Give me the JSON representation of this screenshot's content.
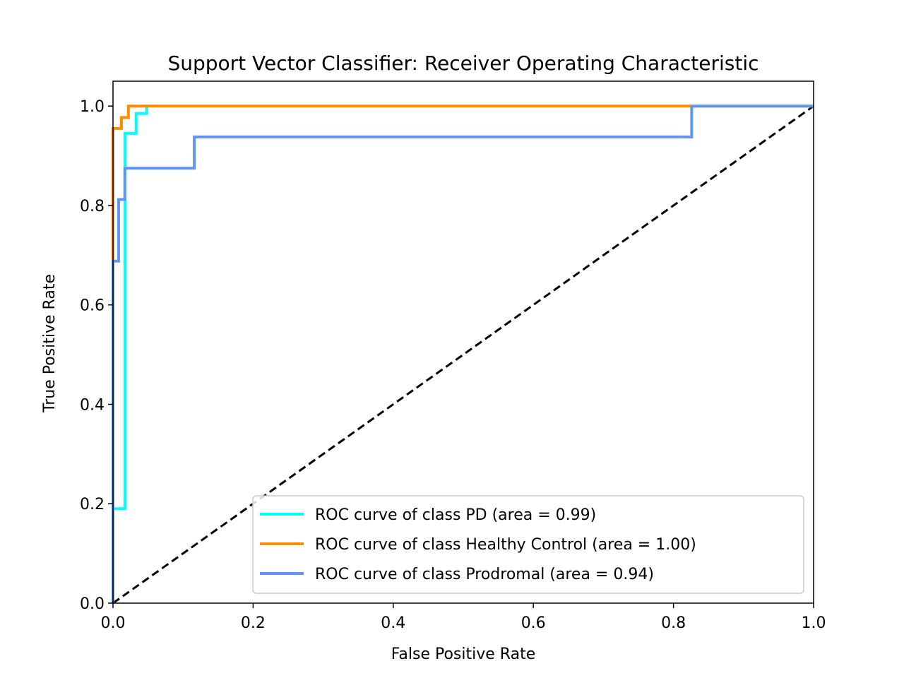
{
  "chart_data": {
    "type": "line",
    "title": "Support Vector Classifier: Receiver Operating Characteristic",
    "xlabel": "False Positive Rate",
    "ylabel": "True Positive Rate",
    "xlim": [
      0.0,
      1.0
    ],
    "ylim": [
      0.0,
      1.05
    ],
    "xticks": [
      "0.0",
      "0.2",
      "0.4",
      "0.6",
      "0.8",
      "1.0"
    ],
    "yticks": [
      "0.0",
      "0.2",
      "0.4",
      "0.6",
      "0.8",
      "1.0"
    ],
    "xtick_values": [
      0.0,
      0.2,
      0.4,
      0.6,
      0.8,
      1.0
    ],
    "ytick_values": [
      0.0,
      0.2,
      0.4,
      0.6,
      0.8,
      1.0
    ],
    "grid": false,
    "legend_position": "bottom-right",
    "series": [
      {
        "name": "ROC curve of class PD (area = 0.99)",
        "color": "#00ffff",
        "x": [
          0.0,
          0.0,
          0.0,
          0.017,
          0.017,
          0.033,
          0.033,
          0.048,
          0.048
        ],
        "y": [
          0.0,
          0.19,
          0.19,
          0.19,
          0.945,
          0.945,
          0.985,
          0.985,
          1.0
        ]
      },
      {
        "name": "ROC curve of class Healthy Control (area = 1.00)",
        "color": "#ff8c00",
        "x": [
          0.0,
          0.0,
          0.0,
          0.012,
          0.012,
          0.022,
          0.022,
          1.0
        ],
        "y": [
          0.0,
          0.045,
          0.955,
          0.955,
          0.977,
          0.977,
          1.0,
          1.0
        ]
      },
      {
        "name": "ROC curve of class Prodromal (area = 0.94)",
        "color": "#6495ed",
        "x": [
          0.0,
          0.0,
          0.008,
          0.008,
          0.017,
          0.017,
          0.116,
          0.116,
          0.826,
          0.826,
          1.0
        ],
        "y": [
          0.0,
          0.688,
          0.688,
          0.812,
          0.812,
          0.875,
          0.875,
          0.938,
          0.938,
          1.0,
          1.0
        ]
      }
    ],
    "reference_line": {
      "color": "#000000",
      "style": "dashed",
      "x": [
        0.0,
        1.0
      ],
      "y": [
        0.0,
        1.0
      ]
    }
  }
}
